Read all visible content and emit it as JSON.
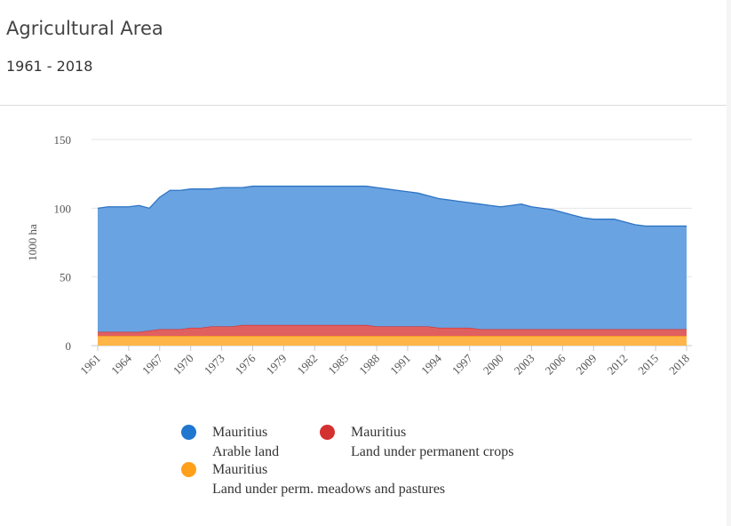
{
  "header": {
    "title": "Agricultural Area",
    "subtitle": "1961 - 2018"
  },
  "chart_data": {
    "type": "area",
    "stacked": true,
    "ylabel": "1000 ha",
    "ylim": [
      0,
      150
    ],
    "yticks": [
      0,
      50,
      100,
      150
    ],
    "xticks": [
      "1961",
      "1964",
      "1967",
      "1970",
      "1973",
      "1976",
      "1979",
      "1982",
      "1985",
      "1988",
      "1991",
      "1994",
      "1997",
      "2000",
      "2003",
      "2006",
      "2009",
      "2012",
      "2015",
      "2018"
    ],
    "grid": true,
    "x": [
      1961,
      1962,
      1963,
      1964,
      1965,
      1966,
      1967,
      1968,
      1969,
      1970,
      1971,
      1972,
      1973,
      1974,
      1975,
      1976,
      1977,
      1978,
      1979,
      1980,
      1981,
      1982,
      1983,
      1984,
      1985,
      1986,
      1987,
      1988,
      1989,
      1990,
      1991,
      1992,
      1993,
      1994,
      1995,
      1996,
      1997,
      1998,
      1999,
      2000,
      2001,
      2002,
      2003,
      2004,
      2005,
      2006,
      2007,
      2008,
      2009,
      2010,
      2011,
      2012,
      2013,
      2014,
      2015,
      2016,
      2017,
      2018
    ],
    "series": [
      {
        "name": "Land under perm. meadows and pastures",
        "country": "Mauritius",
        "color": "#ffb547",
        "values": [
          7,
          7,
          7,
          7,
          7,
          7,
          7,
          7,
          7,
          7,
          7,
          7,
          7,
          7,
          7,
          7,
          7,
          7,
          7,
          7,
          7,
          7,
          7,
          7,
          7,
          7,
          7,
          7,
          7,
          7,
          7,
          7,
          7,
          7,
          7,
          7,
          7,
          7,
          7,
          7,
          7,
          7,
          7,
          7,
          7,
          7,
          7,
          7,
          7,
          7,
          7,
          7,
          7,
          7,
          7,
          7,
          7,
          7
        ]
      },
      {
        "name": "Land under permanent crops",
        "country": "Mauritius",
        "color": "#e06060",
        "values": [
          3,
          3,
          3,
          3,
          3,
          4,
          5,
          5,
          5,
          6,
          6,
          7,
          7,
          7,
          8,
          8,
          8,
          8,
          8,
          8,
          8,
          8,
          8,
          8,
          8,
          8,
          8,
          7,
          7,
          7,
          7,
          7,
          7,
          6,
          6,
          6,
          6,
          5,
          5,
          5,
          5,
          5,
          5,
          5,
          5,
          5,
          5,
          5,
          5,
          5,
          5,
          5,
          5,
          5,
          5,
          5,
          5,
          5
        ]
      },
      {
        "name": "Arable land",
        "country": "Mauritius",
        "color": "#69a3e1",
        "values": [
          90,
          91,
          91,
          91,
          92,
          89,
          96,
          101,
          101,
          101,
          101,
          100,
          101,
          101,
          100,
          101,
          101,
          101,
          101,
          101,
          101,
          101,
          101,
          101,
          101,
          101,
          101,
          101,
          100,
          99,
          98,
          97,
          95,
          94,
          93,
          92,
          91,
          91,
          90,
          89,
          90,
          91,
          89,
          88,
          87,
          85,
          83,
          81,
          80,
          80,
          80,
          78,
          76,
          75,
          75,
          75,
          75,
          75
        ]
      }
    ]
  },
  "legend": [
    {
      "country": "Mauritius",
      "label": "Arable land",
      "color": "#1f77d0"
    },
    {
      "country": "Mauritius",
      "label": "Land under permanent crops",
      "color": "#d43131"
    },
    {
      "country": "Mauritius",
      "label": "Land under perm. meadows and pastures",
      "color": "#ff9f1a"
    }
  ]
}
